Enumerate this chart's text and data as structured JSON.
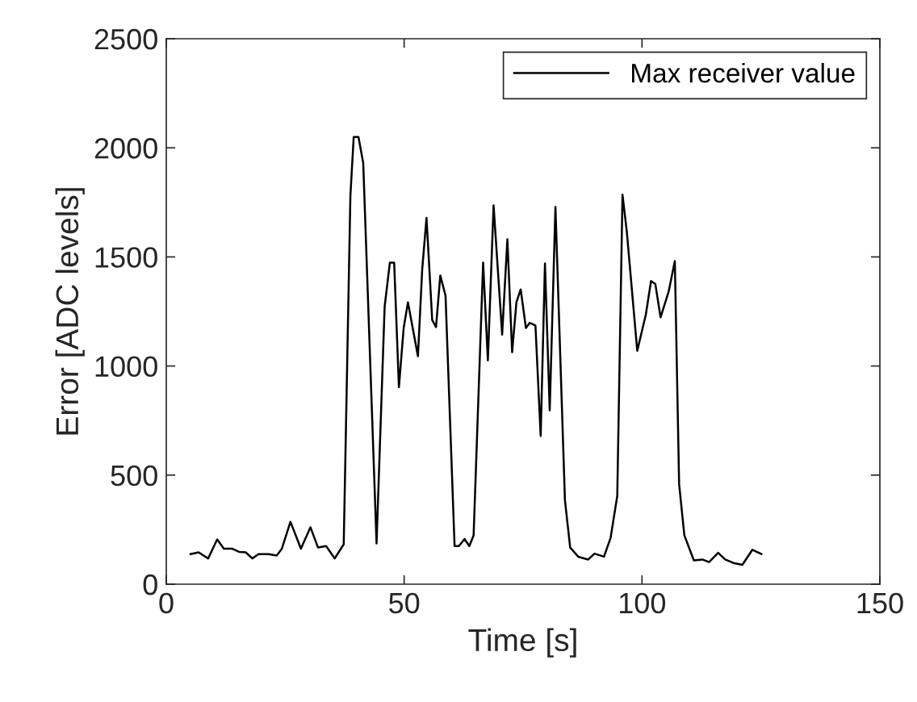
{
  "chart_data": {
    "type": "line",
    "xlabel": "Time [s]",
    "ylabel": "Error [ADC levels]",
    "xlim": [
      0,
      150
    ],
    "ylim": [
      0,
      2500
    ],
    "xticks": [
      0,
      50,
      100,
      150
    ],
    "yticks": [
      0,
      500,
      1000,
      1500,
      2000,
      2500
    ],
    "grid": false,
    "legend": "top right",
    "line_style": "solid",
    "marker": "none",
    "series": [
      {
        "name": "Max receiver value",
        "color": "#000000",
        "x": [
          5.1,
          6.8,
          8.8,
          10.7,
          12.1,
          13.8,
          15.3,
          16.7,
          18.1,
          19.4,
          21.5,
          23.2,
          24.3,
          26.1,
          28.3,
          30.3,
          31.9,
          33.6,
          35.4,
          37.3,
          38.7,
          39.4,
          40.4,
          41.4,
          44.2,
          45.9,
          47.0,
          47.9,
          48.9,
          49.9,
          50.8,
          52.9,
          53.8,
          54.7,
          55.9,
          56.7,
          57.6,
          58.7,
          60.6,
          61.5,
          62.7,
          63.7,
          64.6,
          66.6,
          67.6,
          68.8,
          70.6,
          71.7,
          72.7,
          73.6,
          74.5,
          75.6,
          76.4,
          77.6,
          78.7,
          79.6,
          80.6,
          81.8,
          83.8,
          84.9,
          86.6,
          88.7,
          90.0,
          92.0,
          93.4,
          94.8,
          95.9,
          96.8,
          99.0,
          100.8,
          101.9,
          102.8,
          103.9,
          105.6,
          106.9,
          107.8,
          108.9,
          110.9,
          112.7,
          114.1,
          116.0,
          117.5,
          119.4,
          121.1,
          123.2,
          125.1
        ],
        "values": [
          138,
          146,
          118,
          205,
          163,
          163,
          148,
          146,
          118,
          138,
          138,
          131,
          163,
          286,
          163,
          261,
          168,
          175,
          118,
          183,
          1780,
          2050,
          2050,
          1930,
          187,
          1272,
          1474,
          1474,
          903,
          1174,
          1292,
          1045,
          1444,
          1679,
          1211,
          1178,
          1415,
          1322,
          175,
          175,
          207,
          175,
          224,
          1474,
          1026,
          1736,
          1144,
          1581,
          1063,
          1292,
          1351,
          1174,
          1198,
          1186,
          680,
          1470,
          797,
          1729,
          385,
          168,
          126,
          113,
          140,
          126,
          212,
          405,
          1785,
          1617,
          1070,
          1235,
          1390,
          1376,
          1223,
          1341,
          1481,
          459,
          224,
          109,
          113,
          101,
          144,
          113,
          96,
          89,
          158,
          138
        ]
      }
    ]
  }
}
